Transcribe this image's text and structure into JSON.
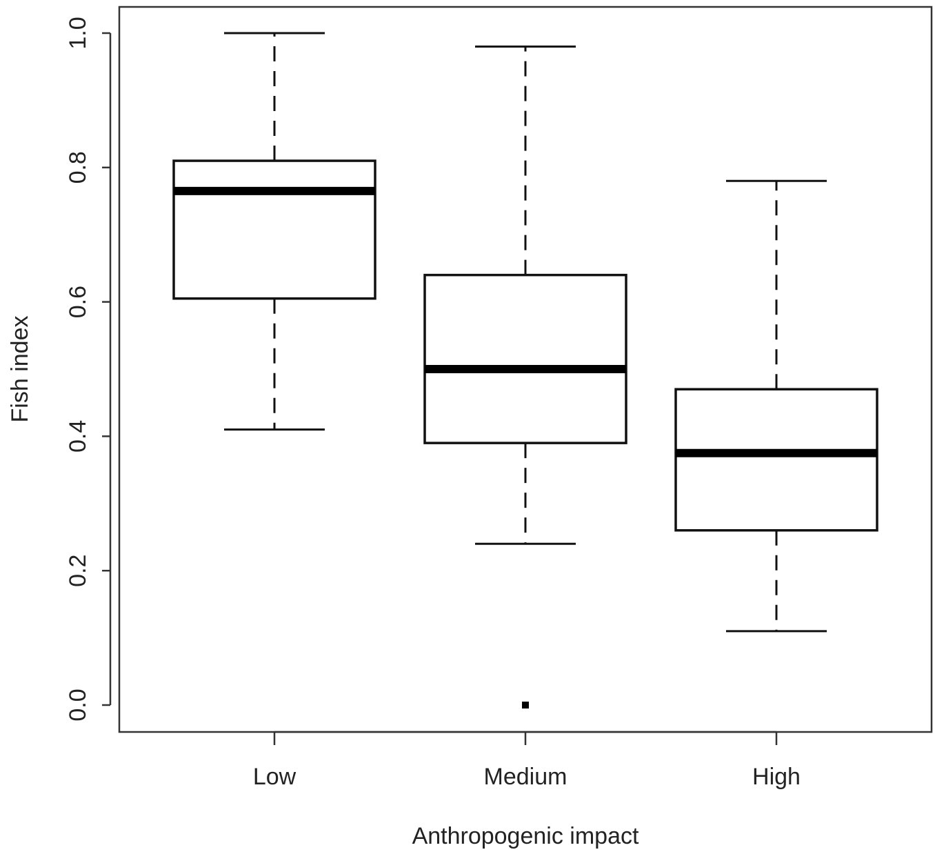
{
  "chart_data": {
    "type": "boxplot",
    "title": "",
    "xlabel": "Anthropogenic impact",
    "ylabel": "Fish index",
    "ylim": [
      -0.04,
      1.04
    ],
    "yticks": [
      0.0,
      0.2,
      0.4,
      0.6,
      0.8,
      1.0
    ],
    "ytick_labels": [
      "0.0",
      "0.2",
      "0.4",
      "0.6",
      "0.8",
      "1.0"
    ],
    "categories": [
      "Low",
      "Medium",
      "High"
    ],
    "boxes": [
      {
        "category": "Low",
        "whisker_low": 0.41,
        "q1": 0.605,
        "median": 0.765,
        "q3": 0.81,
        "whisker_high": 1.0,
        "outliers": []
      },
      {
        "category": "Medium",
        "whisker_low": 0.24,
        "q1": 0.39,
        "median": 0.5,
        "q3": 0.64,
        "whisker_high": 0.98,
        "outliers": [
          0.0
        ]
      },
      {
        "category": "High",
        "whisker_low": 0.11,
        "q1": 0.26,
        "median": 0.375,
        "q3": 0.47,
        "whisker_high": 0.78,
        "outliers": []
      }
    ],
    "grid": false,
    "legend": "none"
  }
}
